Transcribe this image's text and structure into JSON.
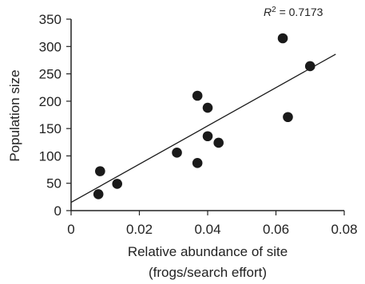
{
  "chart_data": {
    "type": "scatter",
    "title": "",
    "xlabel": [
      "Relative abundance of site",
      "(frogs/search effort)"
    ],
    "ylabel": "Population size",
    "xlim": [
      0,
      0.08
    ],
    "ylim": [
      0,
      350
    ],
    "xticks": [
      0,
      0.02,
      0.04,
      0.06,
      0.08
    ],
    "xtick_labels": [
      "0",
      "0.02",
      "0.04",
      "0.06",
      "0.08"
    ],
    "yticks": [
      0,
      50,
      100,
      150,
      200,
      250,
      300,
      350
    ],
    "ytick_labels": [
      "0",
      "50",
      "100",
      "150",
      "200",
      "250",
      "300",
      "350"
    ],
    "grid": false,
    "annotation": {
      "r2_symbol": "R",
      "r2_superscript": "2",
      "r2_value": " = 0.7173"
    },
    "point_color": "#1a1a1a",
    "line_color": "#1a1a1a",
    "series": [
      {
        "x": [
          0.008,
          0.0085,
          0.0135,
          0.031,
          0.037,
          0.037,
          0.04,
          0.04,
          0.0432,
          0.062,
          0.0635,
          0.07
        ],
        "y": [
          30,
          72,
          49,
          106,
          87,
          210,
          188,
          136,
          124,
          315,
          171,
          264
        ]
      }
    ],
    "trendline": {
      "x": [
        0,
        0.0775
      ],
      "y": [
        15,
        286
      ]
    }
  }
}
